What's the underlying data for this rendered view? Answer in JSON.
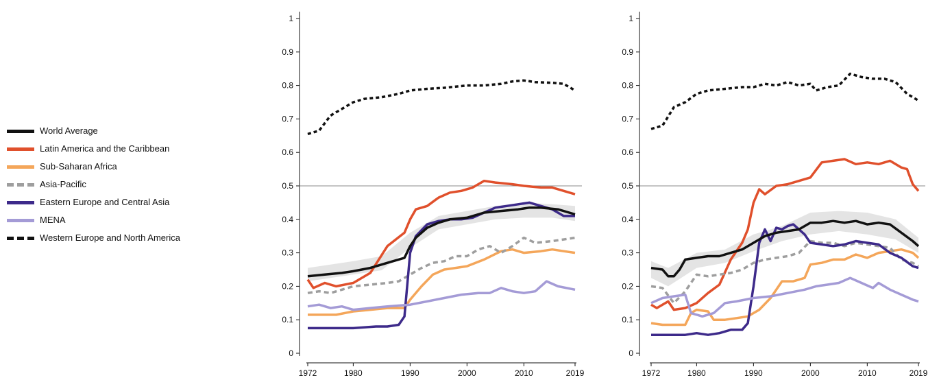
{
  "legend": [
    {
      "name": "World Average",
      "color": "#111111",
      "dash": "solid"
    },
    {
      "name": "Latin America and the Caribbean",
      "color": "#e0502c",
      "dash": "solid"
    },
    {
      "name": "Sub-Saharan Africa",
      "color": "#f4a65a",
      "dash": "solid"
    },
    {
      "name": "Asia-Pacific",
      "color": "#9e9e9e",
      "dash": "dashed"
    },
    {
      "name": "Eastern Europe and Central Asia",
      "color": "#3d2a8a",
      "dash": "solid"
    },
    {
      "name": "MENA",
      "color": "#a49bd6",
      "dash": "solid"
    },
    {
      "name": "Western Europe and North America",
      "color": "#111111",
      "dash": "dotted"
    }
  ],
  "chart_data": [
    {
      "type": "line",
      "title": "",
      "xlabel": "",
      "ylabel": "",
      "xlim": [
        1972,
        2019
      ],
      "ylim": [
        0,
        1
      ],
      "xticks": [
        "1972",
        "1980",
        "1990",
        "2000",
        "2010",
        "2019"
      ],
      "yticks": [
        "0",
        "0.1",
        "0.2",
        "0.3",
        "0.4",
        "0.5",
        "0.6",
        "0.7",
        "0.8",
        "0.9",
        "1"
      ],
      "reference_line": 0.5,
      "grid": false,
      "world_band": {
        "x": [
          1972,
          1980,
          1985,
          1990,
          1995,
          2000,
          2005,
          2010,
          2015,
          2019
        ],
        "lower": [
          0.215,
          0.235,
          0.248,
          0.315,
          0.37,
          0.385,
          0.4,
          0.405,
          0.405,
          0.395
        ],
        "upper": [
          0.255,
          0.275,
          0.29,
          0.36,
          0.41,
          0.425,
          0.44,
          0.45,
          0.445,
          0.44
        ]
      },
      "series": [
        {
          "name": "Western Europe and North America",
          "x": [
            1972,
            1974,
            1976,
            1978,
            1980,
            1982,
            1985,
            1988,
            1990,
            1993,
            1996,
            2000,
            2003,
            2006,
            2008,
            2010,
            2012,
            2015,
            2017,
            2019
          ],
          "y": [
            0.655,
            0.665,
            0.71,
            0.73,
            0.75,
            0.76,
            0.765,
            0.775,
            0.785,
            0.79,
            0.793,
            0.8,
            0.8,
            0.805,
            0.812,
            0.815,
            0.81,
            0.808,
            0.805,
            0.785
          ]
        },
        {
          "name": "Latin America and the Caribbean",
          "x": [
            1972,
            1973,
            1975,
            1977,
            1980,
            1983,
            1986,
            1989,
            1990,
            1991,
            1993,
            1995,
            1997,
            1999,
            2001,
            2003,
            2005,
            2008,
            2010,
            2013,
            2015,
            2017,
            2019
          ],
          "y": [
            0.22,
            0.195,
            0.21,
            0.2,
            0.21,
            0.24,
            0.32,
            0.36,
            0.4,
            0.43,
            0.44,
            0.465,
            0.48,
            0.485,
            0.495,
            0.515,
            0.51,
            0.505,
            0.5,
            0.495,
            0.495,
            0.485,
            0.475
          ]
        },
        {
          "name": "Sub-Saharan Africa",
          "x": [
            1972,
            1975,
            1977,
            1980,
            1983,
            1986,
            1989,
            1990,
            1992,
            1994,
            1996,
            1998,
            2000,
            2003,
            2006,
            2008,
            2010,
            2013,
            2015,
            2017,
            2019
          ],
          "y": [
            0.115,
            0.115,
            0.115,
            0.125,
            0.13,
            0.135,
            0.135,
            0.16,
            0.2,
            0.235,
            0.25,
            0.255,
            0.26,
            0.28,
            0.305,
            0.31,
            0.3,
            0.305,
            0.31,
            0.305,
            0.3
          ]
        },
        {
          "name": "Asia-Pacific",
          "x": [
            1972,
            1974,
            1976,
            1978,
            1980,
            1983,
            1986,
            1988,
            1990,
            1992,
            1994,
            1996,
            1998,
            2000,
            2002,
            2004,
            2006,
            2008,
            2010,
            2012,
            2015,
            2019
          ],
          "y": [
            0.18,
            0.185,
            0.18,
            0.19,
            0.2,
            0.205,
            0.21,
            0.215,
            0.235,
            0.255,
            0.27,
            0.275,
            0.29,
            0.29,
            0.31,
            0.32,
            0.3,
            0.32,
            0.345,
            0.33,
            0.335,
            0.345
          ]
        },
        {
          "name": "Eastern Europe and Central Asia",
          "x": [
            1972,
            1976,
            1980,
            1984,
            1986,
            1988,
            1989,
            1990,
            1991,
            1993,
            1995,
            1997,
            1999,
            2001,
            2003,
            2005,
            2007,
            2009,
            2011,
            2013,
            2015,
            2017,
            2019
          ],
          "y": [
            0.075,
            0.075,
            0.075,
            0.08,
            0.08,
            0.085,
            0.11,
            0.3,
            0.35,
            0.385,
            0.395,
            0.4,
            0.4,
            0.405,
            0.42,
            0.435,
            0.44,
            0.445,
            0.45,
            0.44,
            0.43,
            0.41,
            0.41
          ]
        },
        {
          "name": "MENA",
          "x": [
            1972,
            1974,
            1976,
            1978,
            1980,
            1983,
            1986,
            1990,
            1993,
            1996,
            1999,
            2002,
            2004,
            2006,
            2008,
            2010,
            2012,
            2014,
            2016,
            2019
          ],
          "y": [
            0.14,
            0.145,
            0.135,
            0.14,
            0.13,
            0.135,
            0.14,
            0.145,
            0.155,
            0.165,
            0.175,
            0.18,
            0.18,
            0.195,
            0.185,
            0.18,
            0.185,
            0.215,
            0.2,
            0.19
          ]
        },
        {
          "name": "World Average",
          "x": [
            1972,
            1975,
            1978,
            1980,
            1983,
            1986,
            1989,
            1990,
            1991,
            1993,
            1995,
            1997,
            2000,
            2003,
            2006,
            2009,
            2011,
            2013,
            2016,
            2019
          ],
          "y": [
            0.23,
            0.235,
            0.24,
            0.245,
            0.255,
            0.27,
            0.285,
            0.32,
            0.345,
            0.375,
            0.39,
            0.4,
            0.405,
            0.42,
            0.425,
            0.43,
            0.435,
            0.435,
            0.43,
            0.415
          ]
        }
      ]
    },
    {
      "type": "line",
      "title": "",
      "xlabel": "",
      "ylabel": "",
      "xlim": [
        1972,
        2019
      ],
      "ylim": [
        0,
        1
      ],
      "xticks": [
        "1972",
        "1980",
        "1990",
        "2000",
        "2010",
        "2019"
      ],
      "yticks": [
        "0",
        "0.1",
        "0.2",
        "0.3",
        "0.4",
        "0.5",
        "0.6",
        "0.7",
        "0.8",
        "0.9",
        "1"
      ],
      "reference_line": 0.5,
      "grid": false,
      "world_band": {
        "x": [
          1972,
          1975,
          1980,
          1985,
          1990,
          1995,
          2000,
          2005,
          2010,
          2015,
          2019
        ],
        "lower": [
          0.225,
          0.2,
          0.255,
          0.27,
          0.305,
          0.335,
          0.355,
          0.365,
          0.355,
          0.34,
          0.3
        ],
        "upper": [
          0.275,
          0.255,
          0.3,
          0.31,
          0.355,
          0.38,
          0.42,
          0.425,
          0.42,
          0.4,
          0.345
        ]
      },
      "series": [
        {
          "name": "Western Europe and North America",
          "x": [
            1972,
            1974,
            1976,
            1978,
            1980,
            1982,
            1985,
            1988,
            1990,
            1992,
            1994,
            1996,
            1998,
            2000,
            2001,
            2003,
            2005,
            2007,
            2009,
            2011,
            2013,
            2015,
            2017,
            2019
          ],
          "y": [
            0.67,
            0.68,
            0.735,
            0.75,
            0.775,
            0.785,
            0.79,
            0.795,
            0.795,
            0.805,
            0.8,
            0.81,
            0.8,
            0.805,
            0.785,
            0.795,
            0.8,
            0.835,
            0.825,
            0.82,
            0.82,
            0.81,
            0.775,
            0.755
          ]
        },
        {
          "name": "Latin America and the Caribbean",
          "x": [
            1972,
            1973,
            1975,
            1976,
            1978,
            1980,
            1982,
            1984,
            1986,
            1988,
            1989,
            1990,
            1991,
            1992,
            1994,
            1996,
            1998,
            2000,
            2002,
            2004,
            2006,
            2008,
            2010,
            2012,
            2014,
            2016,
            2017,
            2018,
            2019
          ],
          "y": [
            0.145,
            0.135,
            0.155,
            0.13,
            0.135,
            0.15,
            0.18,
            0.205,
            0.28,
            0.33,
            0.37,
            0.45,
            0.49,
            0.475,
            0.5,
            0.505,
            0.515,
            0.525,
            0.57,
            0.575,
            0.58,
            0.565,
            0.57,
            0.565,
            0.575,
            0.555,
            0.55,
            0.505,
            0.485
          ]
        },
        {
          "name": "Sub-Saharan Africa",
          "x": [
            1972,
            1974,
            1976,
            1978,
            1979,
            1980,
            1982,
            1983,
            1985,
            1987,
            1989,
            1991,
            1993,
            1995,
            1997,
            1999,
            2000,
            2002,
            2004,
            2006,
            2008,
            2010,
            2012,
            2014,
            2016,
            2018,
            2019
          ],
          "y": [
            0.09,
            0.085,
            0.085,
            0.085,
            0.12,
            0.13,
            0.125,
            0.1,
            0.1,
            0.105,
            0.11,
            0.13,
            0.165,
            0.215,
            0.215,
            0.225,
            0.265,
            0.27,
            0.28,
            0.28,
            0.295,
            0.285,
            0.3,
            0.305,
            0.31,
            0.3,
            0.285
          ]
        },
        {
          "name": "Asia-Pacific",
          "x": [
            1972,
            1974,
            1976,
            1978,
            1980,
            1982,
            1984,
            1986,
            1988,
            1990,
            1992,
            1994,
            1996,
            1998,
            2000,
            2002,
            2004,
            2006,
            2008,
            2010,
            2012,
            2014,
            2016,
            2018,
            2019
          ],
          "y": [
            0.2,
            0.195,
            0.15,
            0.185,
            0.235,
            0.23,
            0.235,
            0.24,
            0.25,
            0.27,
            0.28,
            0.285,
            0.29,
            0.3,
            0.335,
            0.33,
            0.33,
            0.32,
            0.33,
            0.325,
            0.32,
            0.315,
            0.28,
            0.27,
            0.26
          ]
        },
        {
          "name": "Eastern Europe and Central Asia",
          "x": [
            1972,
            1976,
            1978,
            1980,
            1982,
            1984,
            1986,
            1988,
            1989,
            1990,
            1991,
            1992,
            1993,
            1994,
            1995,
            1996,
            1997,
            1998,
            1999,
            2000,
            2002,
            2004,
            2006,
            2008,
            2010,
            2012,
            2014,
            2016,
            2018,
            2019
          ],
          "y": [
            0.055,
            0.055,
            0.055,
            0.06,
            0.055,
            0.06,
            0.07,
            0.07,
            0.09,
            0.2,
            0.33,
            0.37,
            0.335,
            0.375,
            0.37,
            0.38,
            0.385,
            0.37,
            0.355,
            0.33,
            0.325,
            0.32,
            0.325,
            0.335,
            0.33,
            0.325,
            0.3,
            0.285,
            0.26,
            0.255
          ]
        },
        {
          "name": "MENA",
          "x": [
            1972,
            1974,
            1976,
            1978,
            1979,
            1981,
            1983,
            1985,
            1987,
            1990,
            1993,
            1996,
            1999,
            2001,
            2003,
            2005,
            2007,
            2009,
            2011,
            2012,
            2014,
            2016,
            2018,
            2019
          ],
          "y": [
            0.15,
            0.165,
            0.17,
            0.175,
            0.12,
            0.11,
            0.12,
            0.15,
            0.155,
            0.165,
            0.17,
            0.18,
            0.19,
            0.2,
            0.205,
            0.21,
            0.225,
            0.21,
            0.195,
            0.21,
            0.19,
            0.175,
            0.16,
            0.155
          ]
        },
        {
          "name": "World Average",
          "x": [
            1972,
            1974,
            1975,
            1976,
            1977,
            1978,
            1980,
            1982,
            1984,
            1986,
            1988,
            1990,
            1992,
            1994,
            1996,
            1998,
            2000,
            2002,
            2004,
            2006,
            2008,
            2010,
            2012,
            2014,
            2016,
            2018,
            2019
          ],
          "y": [
            0.255,
            0.25,
            0.23,
            0.23,
            0.25,
            0.28,
            0.285,
            0.29,
            0.29,
            0.3,
            0.31,
            0.33,
            0.35,
            0.36,
            0.365,
            0.37,
            0.39,
            0.39,
            0.395,
            0.39,
            0.395,
            0.385,
            0.39,
            0.385,
            0.36,
            0.335,
            0.32
          ]
        }
      ]
    }
  ]
}
